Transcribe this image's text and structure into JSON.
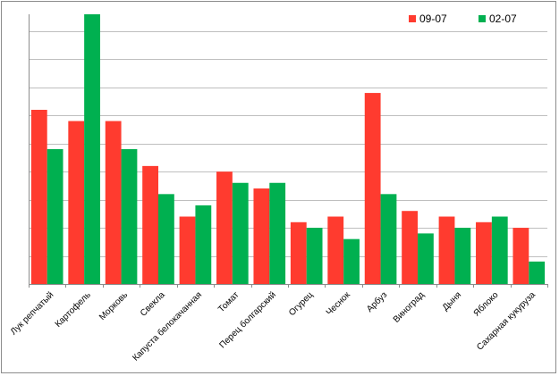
{
  "chart_data": {
    "type": "bar",
    "categories": [
      "Лук репчатый",
      "Картофель",
      "Морковь",
      "Свекла",
      "Капуста белокачанная",
      "Томат",
      "Перец болгарский",
      "Огурец",
      "Чеснок",
      "Арбуз",
      "Виноград",
      "Дыня",
      "Яблоко",
      "Сахарная кукуруза"
    ],
    "series": [
      {
        "name": "09-07",
        "color": "#ff3b2f",
        "values": [
          6.2,
          5.8,
          5.8,
          4.2,
          2.4,
          4.0,
          3.4,
          2.2,
          2.4,
          6.8,
          2.6,
          2.4,
          2.2,
          2.0
        ]
      },
      {
        "name": "02-07",
        "color": "#00b050",
        "values": [
          4.8,
          9.6,
          4.8,
          3.2,
          2.8,
          3.6,
          3.6,
          2.0,
          1.6,
          3.2,
          1.8,
          2.0,
          2.4,
          0.8
        ]
      }
    ],
    "ylim": [
      0,
      9.6
    ],
    "y_gridlines": 9.6,
    "grid": true,
    "legend_position": "top-right",
    "title": "",
    "xlabel": "",
    "ylabel": ""
  }
}
